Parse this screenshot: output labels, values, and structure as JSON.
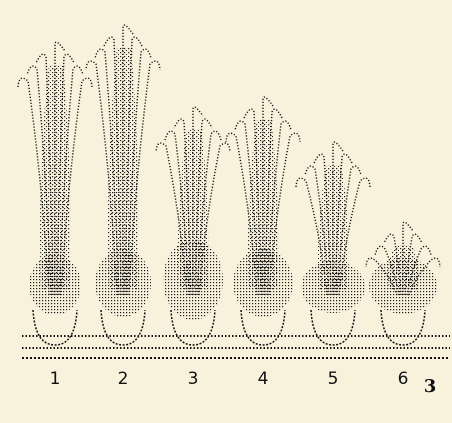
{
  "plants": [
    {
      "label": "1"
    },
    {
      "label": "2"
    },
    {
      "label": "3"
    },
    {
      "label": "4"
    },
    {
      "label": "5"
    },
    {
      "label": "6"
    }
  ],
  "figure_label": "3"
}
